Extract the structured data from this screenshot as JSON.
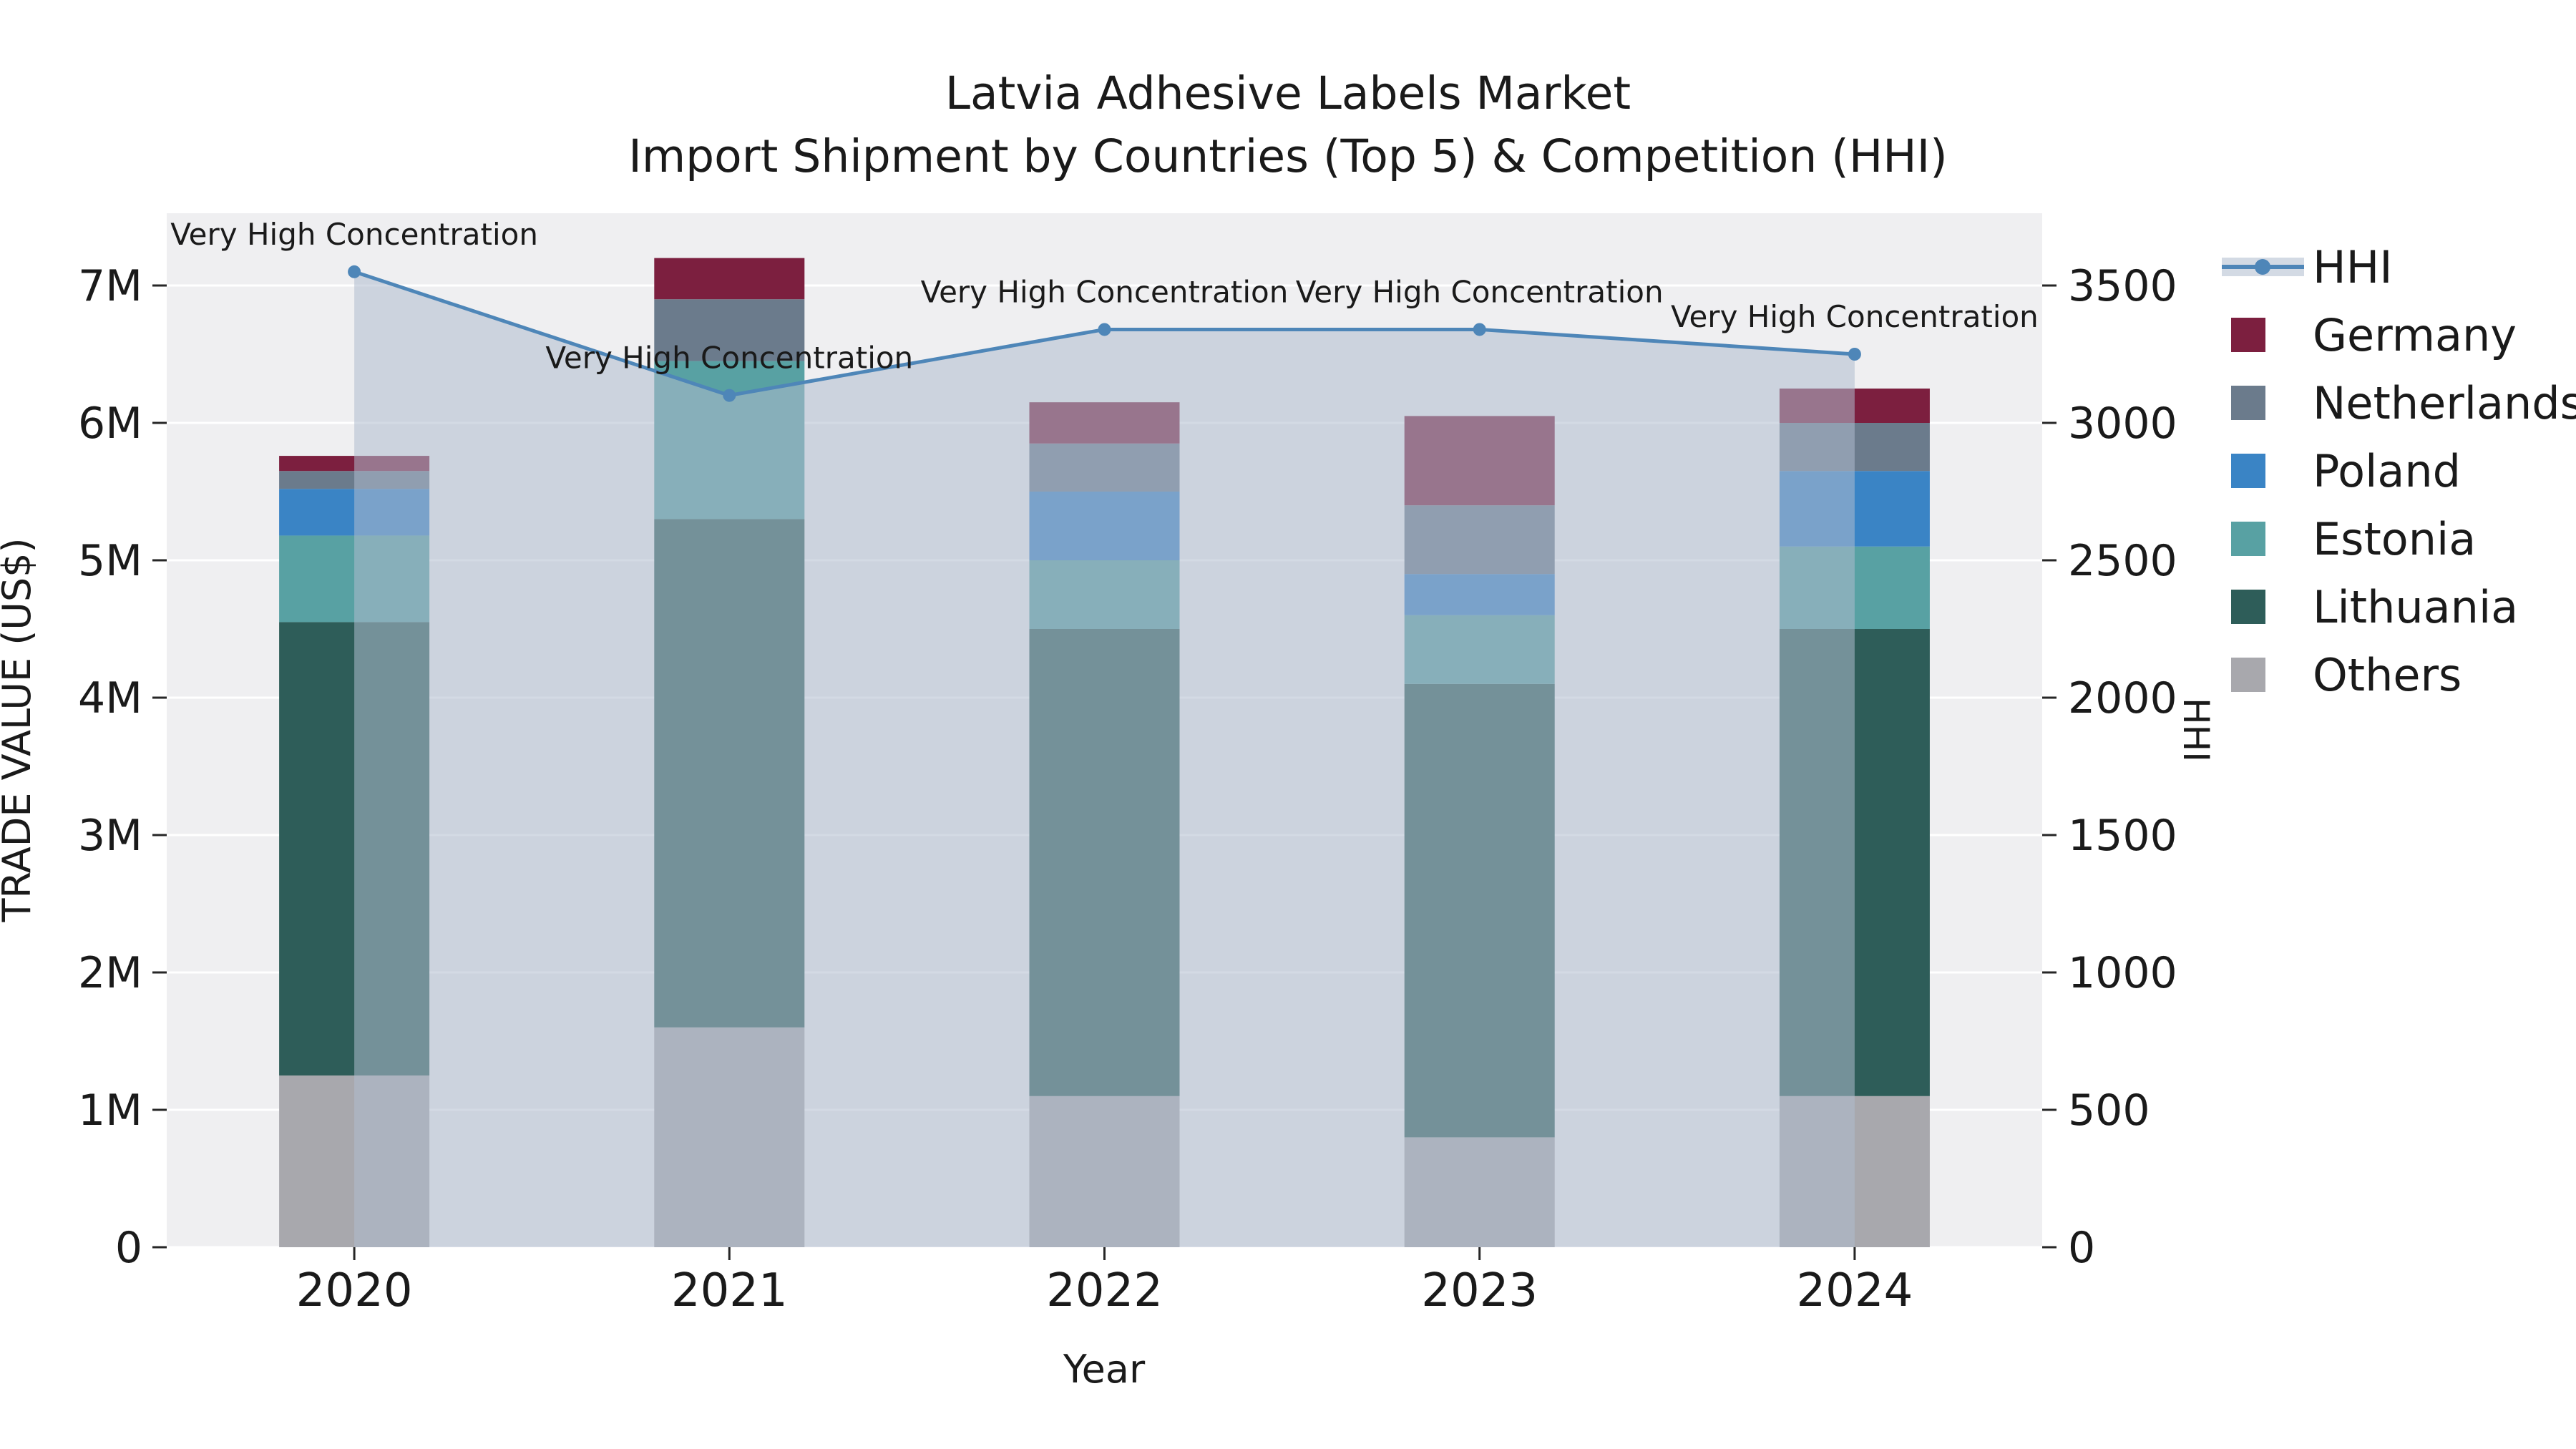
{
  "title": {
    "line1": "Latvia Adhesive Labels Market",
    "line2": "Import Shipment by Countries (Top 5) & Competition (HHI)"
  },
  "legend": {
    "items": [
      {
        "label": "HHI",
        "type": "line",
        "color": "#4e86b8"
      },
      {
        "label": "Germany",
        "type": "square",
        "color": "#7c1f3f"
      },
      {
        "label": "Netherlands",
        "type": "square",
        "color": "#6b7b8c"
      },
      {
        "label": "Poland",
        "type": "square",
        "color": "#3a84c5"
      },
      {
        "label": "Estonia",
        "type": "square",
        "color": "#58a1a3"
      },
      {
        "label": "Lithuania",
        "type": "square",
        "color": "#2e5d59"
      },
      {
        "label": "Others",
        "type": "square",
        "color": "#a8a8ad"
      }
    ]
  },
  "chart_data": {
    "type": "combo-stacked-bar-line",
    "title": "Latvia Adhesive Labels Market — Import Shipment by Countries (Top 5) & Competition (HHI)",
    "xlabel": "Year",
    "ylabel_left": "TRADE VALUE (US$)",
    "ylabel_right": "HHI",
    "categories": [
      "2020",
      "2021",
      "2022",
      "2023",
      "2024"
    ],
    "bar_series": [
      {
        "name": "Others",
        "color": "#a8a8ad",
        "values": [
          1250000,
          1600000,
          1100000,
          800000,
          1100000
        ]
      },
      {
        "name": "Lithuania",
        "color": "#2e5d59",
        "values": [
          3300000,
          3700000,
          3400000,
          3300000,
          3400000
        ]
      },
      {
        "name": "Estonia",
        "color": "#58a1a3",
        "values": [
          630000,
          1150000,
          500000,
          500000,
          600000
        ]
      },
      {
        "name": "Poland",
        "color": "#3a84c5",
        "values": [
          340000,
          0,
          500000,
          300000,
          550000
        ]
      },
      {
        "name": "Netherlands",
        "color": "#6b7b8c",
        "values": [
          130000,
          450000,
          350000,
          500000,
          350000
        ]
      },
      {
        "name": "Germany",
        "color": "#7c1f3f",
        "values": [
          110000,
          300000,
          300000,
          650000,
          250000
        ]
      }
    ],
    "line_series": {
      "name": "HHI",
      "color": "#4e86b8",
      "values": [
        3550,
        3100,
        3340,
        3340,
        3250
      ]
    },
    "annotations": [
      "Very High Concentration",
      "Very High Concentration",
      "Very High Concentration",
      "Very High Concentration",
      "Very High Concentration"
    ],
    "left_axis": {
      "max_display": 7000000,
      "step": 1000000,
      "ticks": [
        "0",
        "1M",
        "2M",
        "3M",
        "4M",
        "5M",
        "6M",
        "7M"
      ]
    },
    "right_axis": {
      "max_display": 3500,
      "step": 500,
      "ticks": [
        "0",
        "500",
        "1000",
        "1500",
        "2000",
        "2500",
        "3000",
        "3500"
      ]
    },
    "legend_position": "right",
    "grid": true,
    "colors": {
      "plot_bg": "#efeff1",
      "grid": "#ffffff",
      "area": "#aebccd",
      "text": "#1a1a1a",
      "tick": "#262626"
    }
  }
}
